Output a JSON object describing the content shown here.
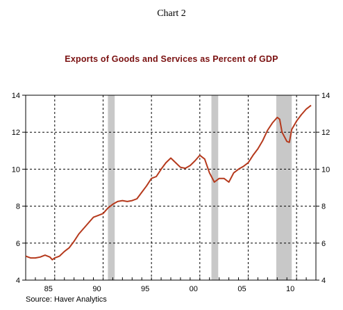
{
  "header": {
    "chart_label": "Chart 2"
  },
  "source": "Source: Haver Analytics",
  "colors": {
    "line": "#b5391c",
    "recession": "#c8c8c8",
    "title": "#7a1010"
  },
  "chart_data": {
    "type": "line",
    "title": "Exports of Goods and Services as Percent of GDP",
    "xlabel": "",
    "ylabel": "",
    "xlim": [
      1982.0,
      2012.0
    ],
    "ylim": [
      4,
      14
    ],
    "y_ticks": [
      4,
      6,
      8,
      10,
      12,
      14
    ],
    "x_ticks": [
      {
        "value": 1985,
        "label": "85"
      },
      {
        "value": 1990,
        "label": "90"
      },
      {
        "value": 1995,
        "label": "95"
      },
      {
        "value": 2000,
        "label": "00"
      },
      {
        "value": 2005,
        "label": "05"
      },
      {
        "value": 2010,
        "label": "10"
      }
    ],
    "grid": true,
    "right_axis": true,
    "recessions": [
      [
        1990.5,
        1991.2
      ],
      [
        2001.2,
        2001.9
      ],
      [
        2007.9,
        2009.5
      ]
    ],
    "series": [
      {
        "x": [
          1982.0,
          1982.25,
          1982.5,
          1983.0,
          1983.5,
          1984.0,
          1984.5,
          1984.75,
          1985.0,
          1985.25,
          1985.5,
          1986.0,
          1986.5,
          1987.0,
          1987.5,
          1988.0,
          1988.5,
          1989.0,
          1989.5,
          1990.0,
          1990.5,
          1991.0,
          1991.5,
          1992.0,
          1992.5,
          1993.0,
          1993.5,
          1994.0,
          1994.5,
          1995.0,
          1995.5,
          1996.0,
          1996.5,
          1997.0,
          1997.5,
          1998.0,
          1998.5,
          1999.0,
          1999.5,
          2000.0,
          2000.5,
          2001.0,
          2001.5,
          2002.0,
          2002.5,
          2003.0,
          2003.5,
          2004.0,
          2004.5,
          2005.0,
          2005.5,
          2006.0,
          2006.5,
          2007.0,
          2007.5,
          2008.0,
          2008.25,
          2008.5,
          2009.0,
          2009.25,
          2009.5,
          2010.0,
          2010.5,
          2011.0,
          2011.5
        ],
        "values": [
          5.3,
          5.25,
          5.2,
          5.2,
          5.25,
          5.35,
          5.25,
          5.1,
          5.2,
          5.25,
          5.3,
          5.55,
          5.75,
          6.1,
          6.5,
          6.8,
          7.1,
          7.4,
          7.5,
          7.6,
          7.9,
          8.1,
          8.25,
          8.3,
          8.25,
          8.3,
          8.4,
          8.75,
          9.1,
          9.5,
          9.6,
          10.0,
          10.35,
          10.6,
          10.35,
          10.1,
          10.05,
          10.2,
          10.45,
          10.75,
          10.55,
          9.8,
          9.3,
          9.5,
          9.5,
          9.3,
          9.8,
          10.0,
          10.15,
          10.35,
          10.75,
          11.1,
          11.55,
          12.1,
          12.5,
          12.8,
          12.7,
          12.0,
          11.5,
          11.45,
          12.15,
          12.6,
          12.95,
          13.25,
          13.45
        ]
      }
    ]
  }
}
